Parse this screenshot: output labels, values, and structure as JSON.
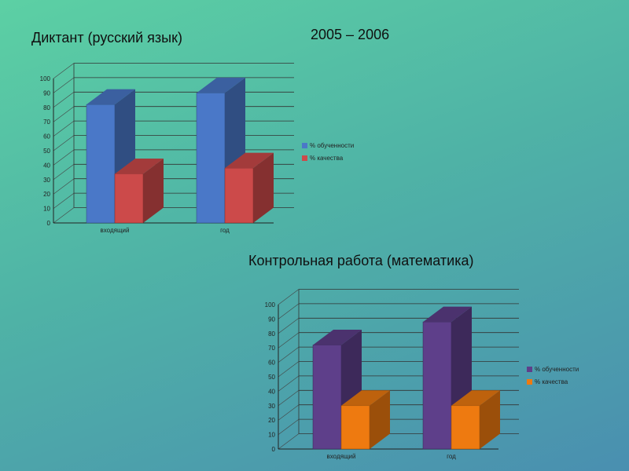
{
  "slide": {
    "title_left": "Диктант (русский язык)",
    "title_years": "2005 – 2006",
    "title_second": "Контрольная работа (математика)"
  },
  "colors": {
    "c1_blue": "#4a78c8",
    "c1_red": "#cc4a4a",
    "c2_purple": "#5e3f8a",
    "c2_orange": "#ee7a10"
  },
  "chart_data": [
    {
      "type": "bar",
      "categories": [
        "входящий",
        "год"
      ],
      "series": [
        {
          "name": "% обученности",
          "values": [
            82,
            90
          ]
        },
        {
          "name": "% качества",
          "values": [
            34,
            38
          ]
        }
      ],
      "ylim": [
        0,
        100
      ],
      "yticks": [
        0,
        10,
        20,
        30,
        40,
        50,
        60,
        70,
        80,
        90,
        100
      ],
      "legend": "right",
      "grid": true
    },
    {
      "type": "bar",
      "categories": [
        "входящий",
        "год"
      ],
      "series": [
        {
          "name": "% обученности",
          "values": [
            72,
            88
          ]
        },
        {
          "name": "% качества",
          "values": [
            30,
            30
          ]
        }
      ],
      "ylim": [
        0,
        100
      ],
      "yticks": [
        0,
        10,
        20,
        30,
        40,
        50,
        60,
        70,
        80,
        90,
        100
      ],
      "legend": "right",
      "grid": true
    }
  ]
}
